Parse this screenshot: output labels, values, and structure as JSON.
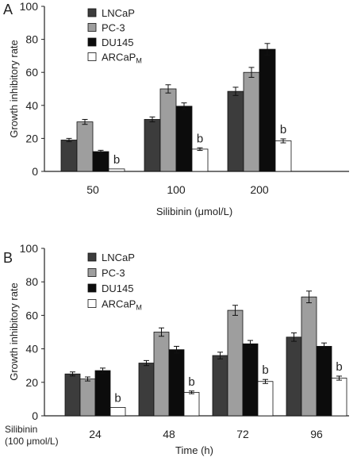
{
  "chart_data": [
    {
      "panel_label": "A",
      "type": "bar",
      "categories": [
        "50",
        "100",
        "200"
      ],
      "series": [
        {
          "name": "LNCaP",
          "color": "#3c3c3c",
          "values": [
            19,
            31.5,
            48.5
          ],
          "errors": [
            1,
            1.5,
            2.5
          ]
        },
        {
          "name": "PC-3",
          "color": "#9e9e9e",
          "values": [
            30,
            50,
            60
          ],
          "errors": [
            1.5,
            2.5,
            3
          ]
        },
        {
          "name": "DU145",
          "color": "#0c0c0c",
          "values": [
            12,
            39.5,
            74
          ],
          "errors": [
            0.8,
            2,
            3.5
          ]
        },
        {
          "name": "ARCaP",
          "name_subscript": "M",
          "color": "#ffffff",
          "values": [
            1.5,
            13.5,
            18.5
          ],
          "errors": [
            0,
            0.8,
            1.2
          ],
          "annotation": "b"
        }
      ],
      "xlabel": "Silibinin (μmol/L)",
      "ylabel": "Growth inhibitory rate",
      "ylim": [
        0,
        100
      ],
      "yticks": [
        0,
        20,
        40,
        60,
        80,
        100
      ],
      "legend_position": "top-left"
    },
    {
      "panel_label": "B",
      "type": "bar",
      "categories": [
        "24",
        "48",
        "72",
        "96"
      ],
      "category_label": "Silibinin (100 μmol/L)",
      "series": [
        {
          "name": "LNCaP",
          "color": "#3c3c3c",
          "values": [
            25,
            31.5,
            36,
            47
          ],
          "errors": [
            1.2,
            1.5,
            2,
            2.5
          ]
        },
        {
          "name": "PC-3",
          "color": "#9e9e9e",
          "values": [
            22,
            50,
            63,
            71
          ],
          "errors": [
            1.2,
            2.5,
            3,
            3.5
          ]
        },
        {
          "name": "DU145",
          "color": "#0c0c0c",
          "values": [
            27,
            39.5,
            43,
            41.5
          ],
          "errors": [
            1.5,
            2,
            2,
            2
          ]
        },
        {
          "name": "ARCaP",
          "name_subscript": "M",
          "color": "#ffffff",
          "values": [
            5,
            14,
            20.5,
            22.5
          ],
          "errors": [
            0,
            0.8,
            1.2,
            1.2
          ],
          "annotation": "b"
        }
      ],
      "xlabel": "Time (h)",
      "ylabel": "Growth inhibitory rate",
      "ylim": [
        0,
        100
      ],
      "yticks": [
        0,
        20,
        40,
        60,
        80,
        100
      ],
      "legend_position": "top-left"
    }
  ]
}
